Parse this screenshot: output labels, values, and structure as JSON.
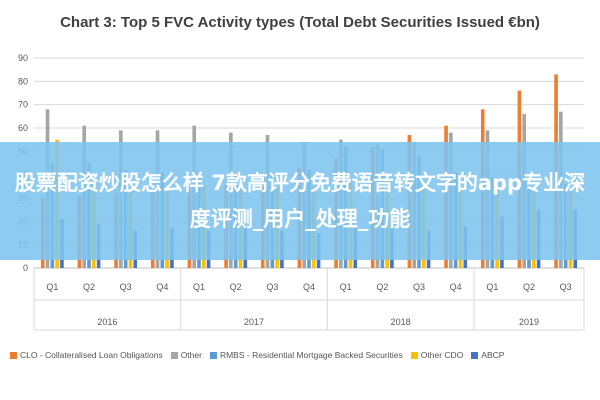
{
  "chart_data": {
    "type": "bar",
    "title": "Chart 3: Top 5 FVC Activity types (Total Debt Securities Issued €bn)",
    "xlabel": "",
    "ylabel": "",
    "ylim": [
      0,
      90
    ],
    "yticks": [
      0,
      10,
      20,
      30,
      40,
      50,
      60,
      70,
      80,
      90
    ],
    "grid": true,
    "legend_position": "bottom",
    "categories": [
      "Q1",
      "Q2",
      "Q3",
      "Q4",
      "Q1",
      "Q2",
      "Q3",
      "Q4",
      "Q1",
      "Q2",
      "Q3",
      "Q4",
      "Q1",
      "Q2",
      "Q3"
    ],
    "year_groups": [
      {
        "label": "2016",
        "count": 4
      },
      {
        "label": "2017",
        "count": 4
      },
      {
        "label": "2018",
        "count": 4
      },
      {
        "label": "2019",
        "count": 3
      }
    ],
    "series": [
      {
        "name": "CLO - Collateralised Loan Obligations",
        "color": "#ed7d31",
        "values": [
          30,
          31,
          32,
          33,
          34,
          36,
          40,
          43,
          47,
          52,
          57,
          61,
          68,
          76,
          83
        ]
      },
      {
        "name": "Other",
        "color": "#a5a5a5",
        "values": [
          68,
          61,
          59,
          59,
          61,
          58,
          57,
          54,
          55,
          53,
          54,
          58,
          59,
          66,
          67
        ]
      },
      {
        "name": "RMBS - Residential Mortgage Backed Securities",
        "color": "#5b9bd5",
        "values": [
          45,
          45,
          42,
          41,
          40,
          41,
          40,
          42,
          52,
          51,
          48,
          41,
          39,
          35,
          36
        ]
      },
      {
        "name": "Other CDO",
        "color": "#ffc000",
        "values": [
          55,
          38,
          36,
          35,
          35,
          34,
          34,
          35,
          37,
          38,
          36,
          35,
          34,
          33,
          33
        ]
      },
      {
        "name": "ABCP",
        "color": "#4472c4",
        "values": [
          21,
          19,
          16,
          17,
          16,
          18,
          16,
          15,
          17,
          17,
          16,
          18,
          22,
          25,
          25
        ]
      }
    ]
  },
  "overlay_banner": {
    "text": "股票配资炒股怎么样 7款高评分免费语音转文字的app专业深度评测_用户_处理_功能"
  }
}
